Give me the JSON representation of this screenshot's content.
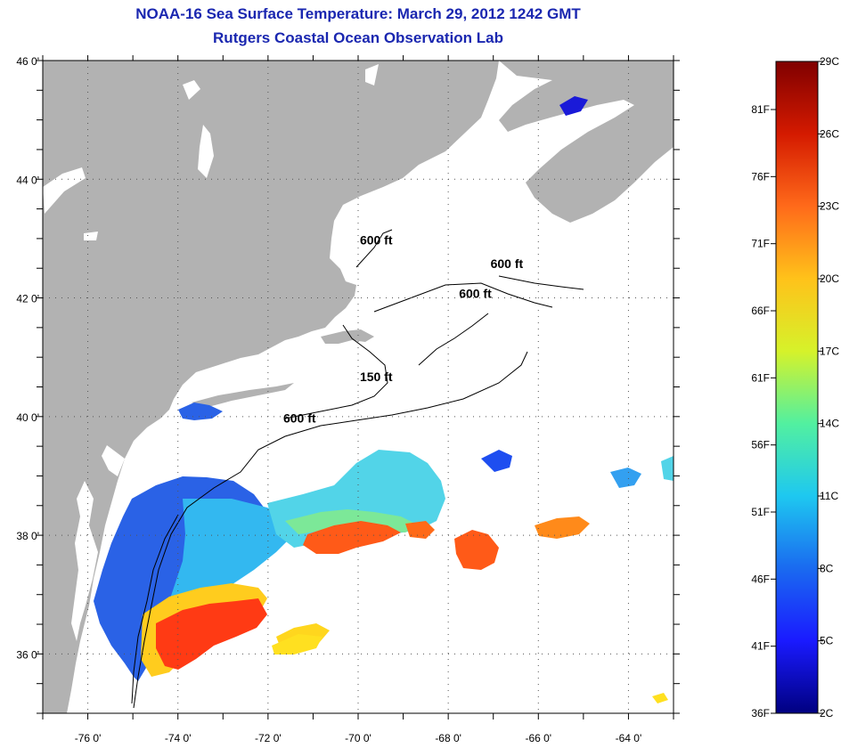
{
  "title": {
    "line1": "NOAA-16 Sea Surface Temperature:  March 29, 2012 1242 GMT",
    "line2": "Rutgers Coastal Ocean Observation Lab"
  },
  "map": {
    "lon_range": [
      -77,
      -63
    ],
    "lat_range": [
      35,
      46
    ],
    "x_ticks": [
      {
        "lon": -76,
        "label": "-76 0'"
      },
      {
        "lon": -74,
        "label": "-74 0'"
      },
      {
        "lon": -72,
        "label": "-72 0'"
      },
      {
        "lon": -70,
        "label": "-70 0'"
      },
      {
        "lon": -68,
        "label": "-68 0'"
      },
      {
        "lon": -66,
        "label": "-66 0'"
      },
      {
        "lon": -64,
        "label": "-64 0'"
      }
    ],
    "y_ticks": [
      {
        "lat": 46,
        "label": "46 0'"
      },
      {
        "lat": 44,
        "label": "44 0'"
      },
      {
        "lat": 42,
        "label": "42 0'"
      },
      {
        "lat": 40,
        "label": "40 0'"
      },
      {
        "lat": 38,
        "label": "38 0'"
      },
      {
        "lat": 36,
        "label": "36 0'"
      }
    ],
    "grid": "dotted",
    "colors": {
      "land": "#b2b2b2",
      "water": "#ffffff",
      "contour": "#000000",
      "grid": "#555555"
    },
    "contour_labels": [
      {
        "text": "600 ft",
        "lon": -69.6,
        "lat": 42.9
      },
      {
        "text": "600 ft",
        "lon": -66.7,
        "lat": 42.5
      },
      {
        "text": "600 ft",
        "lon": -67.4,
        "lat": 42.0
      },
      {
        "text": "150 ft",
        "lon": -69.6,
        "lat": 40.6
      },
      {
        "text": "600 ft",
        "lon": -71.3,
        "lat": 39.9
      }
    ]
  },
  "colorbar": {
    "celsius": [
      "29C",
      "26C",
      "23C",
      "20C",
      "17C",
      "14C",
      "11C",
      "8C",
      "5C",
      "2C"
    ],
    "fahrenheit": [
      "81F",
      "76F",
      "71F",
      "66F",
      "61F",
      "56F",
      "51F",
      "46F",
      "41F",
      "36F"
    ],
    "colors": [
      "#800000",
      "#d41a00",
      "#ff6a1a",
      "#ffc21a",
      "#d6f22a",
      "#52f0a0",
      "#1ec8f0",
      "#1a6af0",
      "#1a1aff",
      "#000080"
    ]
  }
}
